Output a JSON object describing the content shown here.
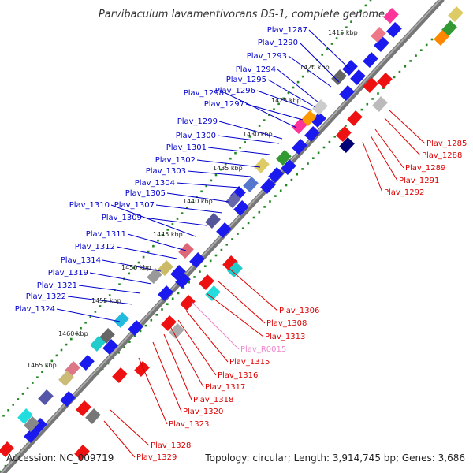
{
  "title": "Parvibaculum lavamentivorans DS-1, complete genome",
  "accession": "Accession: NC_009719",
  "topology": "Topology: circular; Length: 3,914,745 bp; Genes: 3,686",
  "colors": {
    "forward_label": "#0000cc",
    "reverse_label": "#dd0000",
    "rna_label": "#ee88cc",
    "backbone": "#777777",
    "tick_green": "#228822"
  },
  "kbp_marks": [
    "1415 kbp",
    "1420 kbp",
    "1425 kbp",
    "1430 kbp",
    "1435 kbp",
    "1440 kbp",
    "1445 kbp",
    "1450 kbp",
    "1455 kbp",
    "1460 kbp",
    "1465 kbp"
  ],
  "forward_genes": [
    "Plav_1287",
    "Plav_1290",
    "Plav_1293",
    "Plav_1294",
    "Plav_1295",
    "Plav_1296",
    "Plav_1297",
    "Plav_1298",
    "Plav_1299",
    "Plav_1300",
    "Plav_1301",
    "Plav_1302",
    "Plav_1303",
    "Plav_1304",
    "Plav_1305",
    "Plav_1307",
    "Plav_1309",
    "Plav_1310",
    "Plav_1311",
    "Plav_1312",
    "Plav_1314",
    "Plav_1319",
    "Plav_1321",
    "Plav_1322",
    "Plav_1324"
  ],
  "reverse_genes": [
    "Plav_1285",
    "Plav_1288",
    "Plav_1289",
    "Plav_1291",
    "Plav_1292",
    "Plav_1306",
    "Plav_1308",
    "Plav_1313",
    "Plav_R0015",
    "Plav_1315",
    "Plav_1316",
    "Plav_1317",
    "Plav_1318",
    "Plav_1320",
    "Plav_1323",
    "Plav_1328",
    "Plav_1329"
  ]
}
